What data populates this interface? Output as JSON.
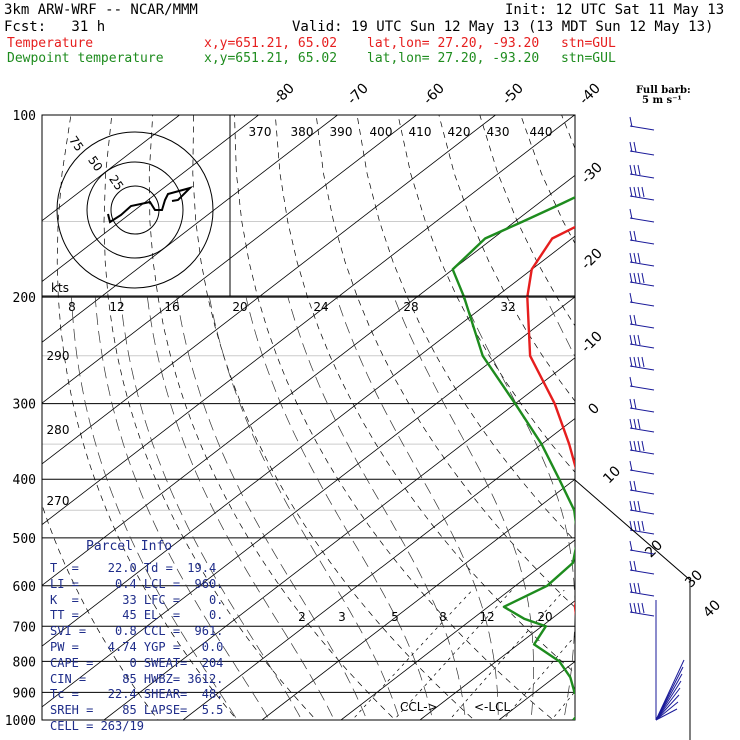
{
  "header": {
    "model": "3km ARW-WRF -- NCAR/MMM",
    "init": "Init: 12 UTC Sat 11 May 13",
    "fcst": "Fcst:   31 h",
    "valid": "Valid: 19 UTC Sun 12 May 13 (13 MDT Sun 12 May 13)",
    "temp_label": "Temperature",
    "dew_label": "Dewpoint temperature",
    "xy": "x,y=651.21, 65.02",
    "latlon": "lat,lon= 27.20, -93.20",
    "stn": "stn=GUL"
  },
  "colors": {
    "temperature": "#e61e1e",
    "dewpoint": "#1e8c1e",
    "axes": "#000000",
    "parcel_text": "#1f2d8a",
    "wind": "#1a1a99"
  },
  "barb_header": {
    "line1": "Full barb:",
    "line2": "5 m s⁻¹"
  },
  "parcel_info": {
    "title": "Parcel Info",
    "rows": [
      "T  =    22.0 Td =  19.4",
      "LI =     0.4 LCL =  960.",
      "K  =      33 LFC =    0.",
      "TT =      45 EL  =    0.",
      "SVI =    0.8 CCL =  961.",
      "PW =    4.74 YGP =   0.0",
      "CAPE =     0 SWEAT=  204",
      "CIN =     85 HWBZ= 3612.",
      "Tc =    22.4 SHEAR=  48.",
      "SREH =    85 LAPSE=  5.5",
      "CELL = 263/19"
    ]
  },
  "chart_data": {
    "type": "line",
    "title": "Skew-T log-P",
    "pressure_levels": [
      "100",
      "200",
      "300",
      "400",
      "500",
      "600",
      "700",
      "800",
      "900",
      "1000"
    ],
    "isotherm_labels": [
      "-80",
      "-70",
      "-60",
      "-50",
      "-40",
      "-30",
      "-20",
      "-10",
      "0",
      "10",
      "20",
      "30",
      "40"
    ],
    "theta_e_labels": [
      "370",
      "380",
      "390",
      "400",
      "410",
      "420",
      "430",
      "440"
    ],
    "mixing_ratio_labels": [
      "2",
      "3",
      "5",
      "8",
      "12",
      "20"
    ],
    "theta_labels": [
      "290",
      "280",
      "270"
    ],
    "hodo_speed_labels": [
      "kts",
      "8",
      "12",
      "16",
      "20",
      "24",
      "28",
      "32"
    ],
    "hodo_ring_labels": [
      "75",
      "50",
      "25"
    ],
    "markers": {
      "ccl": "CCL->",
      "lcl": "<-LCL"
    },
    "series": [
      {
        "name": "Temperature",
        "pressure": [
          1000,
          975,
          950,
          925,
          900,
          850,
          800,
          750,
          700,
          650,
          600,
          550,
          500,
          450,
          400,
          350,
          300,
          250,
          200,
          180,
          160,
          150,
          140,
          120,
          100
        ],
        "values": [
          22.0,
          20.0,
          18.5,
          17.6,
          16.2,
          13.5,
          11.0,
          7.5,
          4.5,
          1.0,
          -2.0,
          -5.5,
          -9.0,
          -13.8,
          -19.5,
          -26.5,
          -35.0,
          -46.0,
          -56.0,
          -60.0,
          -62.5,
          -61.0,
          -59.0,
          -60.5,
          -62.0
        ]
      },
      {
        "name": "Dewpoint temperature",
        "pressure": [
          1000,
          975,
          950,
          925,
          900,
          850,
          800,
          750,
          700,
          680,
          650,
          600,
          550,
          500,
          450,
          400,
          350,
          300,
          250,
          200,
          180,
          160,
          150,
          140,
          120,
          100
        ],
        "values": [
          19.4,
          19.0,
          18.0,
          16.8,
          15.0,
          12.0,
          8.0,
          2.0,
          0.5,
          -3.5,
          -8.0,
          -6.0,
          -6.5,
          -10.0,
          -15.0,
          -22.0,
          -30.0,
          -40.0,
          -52.0,
          -64.0,
          -70.0,
          -71.0,
          -69.0,
          -67.0,
          -63.0,
          -58.0
        ]
      }
    ]
  }
}
